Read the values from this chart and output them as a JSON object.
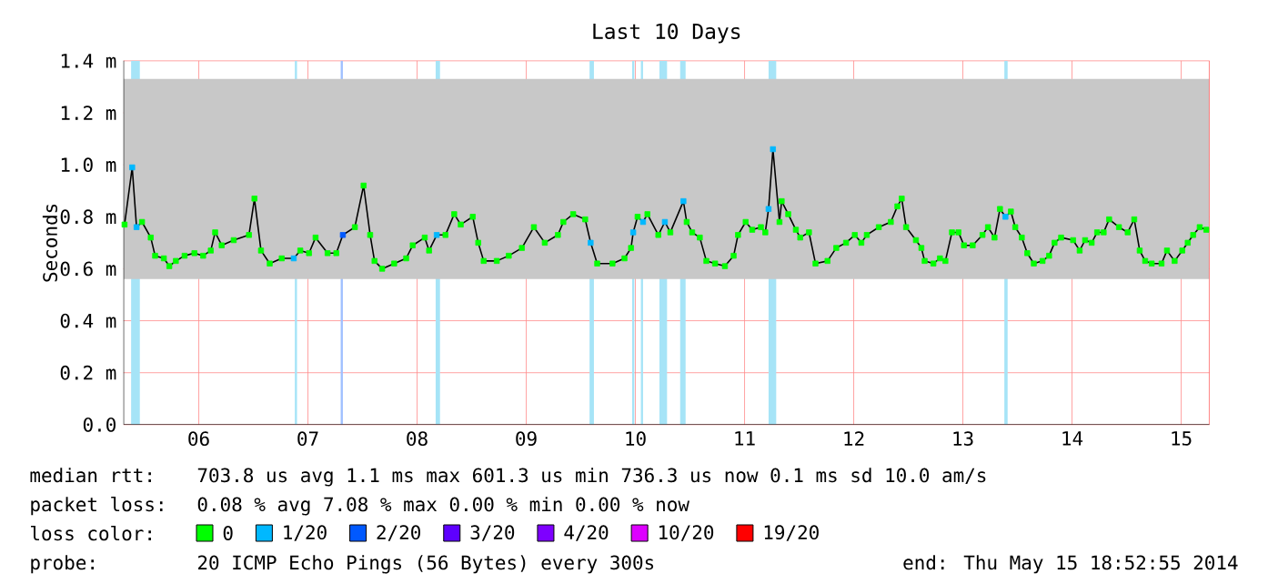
{
  "chart_data": {
    "type": "line",
    "title": "Last 10 Days",
    "ylabel": "Seconds",
    "xlim": [
      5.81,
      15.76
    ],
    "ylim": [
      0,
      1.4
    ],
    "xticks": [
      {
        "value": 6.5,
        "label": "06"
      },
      {
        "value": 7.5,
        "label": "07"
      },
      {
        "value": 8.5,
        "label": "08"
      },
      {
        "value": 9.5,
        "label": "09"
      },
      {
        "value": 10.5,
        "label": "10"
      },
      {
        "value": 11.5,
        "label": "11"
      },
      {
        "value": 12.5,
        "label": "12"
      },
      {
        "value": 13.5,
        "label": "13"
      },
      {
        "value": 14.5,
        "label": "14"
      },
      {
        "value": 15.5,
        "label": "15"
      }
    ],
    "yticks": [
      {
        "value": 0,
        "label": "0.0"
      },
      {
        "value": 0.2,
        "label": "0.2 m"
      },
      {
        "value": 0.4,
        "label": "0.4 m"
      },
      {
        "value": 0.6,
        "label": "0.6 m"
      },
      {
        "value": 0.8,
        "label": "0.8 m"
      },
      {
        "value": 1.0,
        "label": "1.0 m"
      },
      {
        "value": 1.2,
        "label": "1.2 m"
      },
      {
        "value": 1.4,
        "label": "1.4 m"
      }
    ],
    "grid": true,
    "legend": "bottom",
    "legend_title": "loss color:",
    "marker": "square",
    "bands": [
      {
        "axis": "x",
        "from": 5.88,
        "to": 5.96,
        "color": "#a6e4f7"
      },
      {
        "axis": "x",
        "from": 7.38,
        "to": 7.4,
        "color": "#a6e4f7"
      },
      {
        "axis": "x",
        "from": 7.8,
        "to": 7.82,
        "color": "#a0c0ff"
      },
      {
        "axis": "x",
        "from": 8.67,
        "to": 8.71,
        "color": "#a6e4f7"
      },
      {
        "axis": "x",
        "from": 10.08,
        "to": 10.12,
        "color": "#a6e4f7"
      },
      {
        "axis": "x",
        "from": 10.47,
        "to": 10.49,
        "color": "#a6e4f7"
      },
      {
        "axis": "x",
        "from": 10.55,
        "to": 10.57,
        "color": "#a6e4f7"
      },
      {
        "axis": "x",
        "from": 10.72,
        "to": 10.79,
        "color": "#a6e4f7"
      },
      {
        "axis": "x",
        "from": 10.91,
        "to": 10.96,
        "color": "#a6e4f7"
      },
      {
        "axis": "x",
        "from": 11.72,
        "to": 11.79,
        "color": "#a6e4f7"
      },
      {
        "axis": "x",
        "from": 13.88,
        "to": 13.91,
        "color": "#a6e4f7"
      },
      {
        "axis": "y",
        "from": 0.56,
        "to": 1.33,
        "color": "#c8c8c8"
      }
    ],
    "series": [
      {
        "type": "line",
        "color": "#000000",
        "marker": "none",
        "x": [
          5.82,
          5.89,
          5.93,
          5.98,
          6.06,
          6.1,
          6.18,
          6.23,
          6.29,
          6.37,
          6.46,
          6.54,
          6.61,
          6.65,
          6.71,
          6.82,
          6.96,
          7.01,
          7.07,
          7.15,
          7.26,
          7.37,
          7.43,
          7.51,
          7.57,
          7.68,
          7.76,
          7.82,
          7.93,
          8.01,
          8.07,
          8.11,
          8.18,
          8.29,
          8.4,
          8.46,
          8.57,
          8.61,
          8.68,
          8.76,
          8.84,
          8.9,
          9.01,
          9.06,
          9.11,
          9.23,
          9.34,
          9.46,
          9.57,
          9.67,
          9.79,
          9.84,
          9.93,
          10.04,
          10.09,
          10.15,
          10.29,
          10.4,
          10.46,
          10.48,
          10.52,
          10.57,
          10.61,
          10.71,
          10.77,
          10.82,
          10.94,
          10.97,
          11.02,
          11.09,
          11.15,
          11.23,
          11.32,
          11.4,
          11.44,
          11.51,
          11.57,
          11.65,
          11.69,
          11.72,
          11.76,
          11.82,
          11.84,
          11.9,
          11.97,
          12.01,
          12.09,
          12.15,
          12.26,
          12.34,
          12.43,
          12.51,
          12.57,
          12.62,
          12.73,
          12.84,
          12.9,
          12.94,
          12.98,
          13.07,
          13.12,
          13.15,
          13.23,
          13.29,
          13.34,
          13.4,
          13.46,
          13.51,
          13.59,
          13.68,
          13.73,
          13.79,
          13.84,
          13.89,
          13.94,
          13.98,
          14.04,
          14.09,
          14.15,
          14.23,
          14.29,
          14.34,
          14.4,
          14.51,
          14.57,
          14.62,
          14.68,
          14.73,
          14.79,
          14.84,
          14.93,
          15.01,
          15.07,
          15.12,
          15.17,
          15.23,
          15.32,
          15.37,
          15.44,
          15.51,
          15.56,
          15.61,
          15.67,
          15.73
        ],
        "values": [
          0.77,
          0.99,
          0.76,
          0.78,
          0.72,
          0.65,
          0.64,
          0.61,
          0.63,
          0.65,
          0.66,
          0.65,
          0.67,
          0.74,
          0.69,
          0.71,
          0.73,
          0.87,
          0.67,
          0.62,
          0.64,
          0.64,
          0.67,
          0.66,
          0.72,
          0.66,
          0.66,
          0.73,
          0.76,
          0.92,
          0.73,
          0.63,
          0.6,
          0.62,
          0.64,
          0.69,
          0.72,
          0.67,
          0.73,
          0.73,
          0.81,
          0.77,
          0.8,
          0.7,
          0.63,
          0.63,
          0.65,
          0.68,
          0.76,
          0.7,
          0.73,
          0.78,
          0.81,
          0.79,
          0.7,
          0.62,
          0.62,
          0.64,
          0.68,
          0.74,
          0.8,
          0.78,
          0.81,
          0.73,
          0.78,
          0.74,
          0.86,
          0.78,
          0.74,
          0.72,
          0.63,
          0.62,
          0.61,
          0.65,
          0.73,
          0.78,
          0.75,
          0.76,
          0.74,
          0.83,
          1.06,
          0.78,
          0.86,
          0.81,
          0.75,
          0.72,
          0.74,
          0.62,
          0.63,
          0.68,
          0.7,
          0.73,
          0.7,
          0.73,
          0.76,
          0.78,
          0.84,
          0.87,
          0.76,
          0.71,
          0.68,
          0.63,
          0.62,
          0.64,
          0.63,
          0.74,
          0.74,
          0.69,
          0.69,
          0.73,
          0.76,
          0.72,
          0.83,
          0.8,
          0.82,
          0.76,
          0.72,
          0.66,
          0.62,
          0.63,
          0.65,
          0.7,
          0.72,
          0.71,
          0.67,
          0.71,
          0.7,
          0.74,
          0.74,
          0.79,
          0.76,
          0.74,
          0.79,
          0.67,
          0.63,
          0.62,
          0.62,
          0.67,
          0.63,
          0.67,
          0.7,
          0.73,
          0.76,
          0.75
        ]
      },
      {
        "type": "scatter",
        "name": "0",
        "color": "#00ff00",
        "x": [
          5.82,
          5.98,
          6.06,
          6.1,
          6.18,
          6.23,
          6.29,
          6.37,
          6.46,
          6.54,
          6.61,
          6.65,
          6.71,
          6.82,
          6.96,
          7.01,
          7.07,
          7.15,
          7.26,
          7.43,
          7.51,
          7.57,
          7.68,
          7.76,
          7.93,
          8.01,
          8.07,
          8.11,
          8.18,
          8.29,
          8.4,
          8.46,
          8.57,
          8.61,
          8.76,
          8.84,
          8.9,
          9.01,
          9.06,
          9.11,
          9.23,
          9.34,
          9.46,
          9.57,
          9.67,
          9.79,
          9.84,
          9.93,
          10.04,
          10.15,
          10.29,
          10.4,
          10.46,
          10.52,
          10.61,
          10.71,
          10.82,
          10.97,
          11.02,
          11.09,
          11.15,
          11.23,
          11.32,
          11.4,
          11.44,
          11.51,
          11.57,
          11.65,
          11.69,
          11.82,
          11.84,
          11.9,
          11.97,
          12.01,
          12.09,
          12.15,
          12.26,
          12.34,
          12.43,
          12.51,
          12.57,
          12.62,
          12.73,
          12.84,
          12.9,
          12.94,
          12.98,
          13.07,
          13.12,
          13.15,
          13.23,
          13.29,
          13.34,
          13.4,
          13.46,
          13.51,
          13.59,
          13.68,
          13.73,
          13.79,
          13.84,
          13.94,
          13.98,
          14.04,
          14.09,
          14.15,
          14.23,
          14.29,
          14.34,
          14.4,
          14.51,
          14.57,
          14.62,
          14.68,
          14.73,
          14.79,
          14.84,
          14.93,
          15.01,
          15.07,
          15.12,
          15.17,
          15.23,
          15.32,
          15.37,
          15.44,
          15.51,
          15.56,
          15.61,
          15.67,
          15.73
        ],
        "values": [
          0.77,
          0.78,
          0.72,
          0.65,
          0.64,
          0.61,
          0.63,
          0.65,
          0.66,
          0.65,
          0.67,
          0.74,
          0.69,
          0.71,
          0.73,
          0.87,
          0.67,
          0.62,
          0.64,
          0.67,
          0.66,
          0.72,
          0.66,
          0.66,
          0.76,
          0.92,
          0.73,
          0.63,
          0.6,
          0.62,
          0.64,
          0.69,
          0.72,
          0.67,
          0.73,
          0.81,
          0.77,
          0.8,
          0.7,
          0.63,
          0.63,
          0.65,
          0.68,
          0.76,
          0.7,
          0.73,
          0.78,
          0.81,
          0.79,
          0.62,
          0.62,
          0.64,
          0.68,
          0.8,
          0.81,
          0.73,
          0.74,
          0.78,
          0.74,
          0.72,
          0.63,
          0.62,
          0.61,
          0.65,
          0.73,
          0.78,
          0.75,
          0.76,
          0.74,
          0.78,
          0.86,
          0.81,
          0.75,
          0.72,
          0.74,
          0.62,
          0.63,
          0.68,
          0.7,
          0.73,
          0.7,
          0.73,
          0.76,
          0.78,
          0.84,
          0.87,
          0.76,
          0.71,
          0.68,
          0.63,
          0.62,
          0.64,
          0.63,
          0.74,
          0.74,
          0.69,
          0.69,
          0.73,
          0.76,
          0.72,
          0.83,
          0.82,
          0.76,
          0.72,
          0.66,
          0.62,
          0.63,
          0.65,
          0.7,
          0.72,
          0.71,
          0.67,
          0.71,
          0.7,
          0.74,
          0.74,
          0.79,
          0.76,
          0.74,
          0.79,
          0.67,
          0.63,
          0.62,
          0.62,
          0.67,
          0.63,
          0.67,
          0.7,
          0.73,
          0.76,
          0.75
        ]
      },
      {
        "type": "scatter",
        "name": "1/20",
        "color": "#00b8ff",
        "x": [
          5.89,
          5.93,
          7.37,
          8.68,
          10.09,
          10.48,
          10.57,
          10.77,
          10.94,
          11.72,
          11.76,
          13.89
        ],
        "values": [
          0.99,
          0.76,
          0.64,
          0.73,
          0.7,
          0.74,
          0.78,
          0.78,
          0.86,
          0.83,
          1.06,
          0.8
        ]
      },
      {
        "type": "scatter",
        "name": "2/20",
        "color": "#0059ff",
        "x": [
          7.82
        ],
        "values": [
          0.73
        ]
      },
      {
        "type": "scatter",
        "name": "3/20",
        "color": "#5e00ff"
      },
      {
        "type": "scatter",
        "name": "4/20",
        "color": "#7e00ff"
      },
      {
        "type": "scatter",
        "name": "10/20",
        "color": "#dd00ff"
      },
      {
        "type": "scatter",
        "name": "19/20",
        "color": "#ff0000"
      }
    ],
    "annotations": [
      "median rtt:",
      "703.8 us avg  1.1 ms max  601.3 us min  736.3 us now  0.1 ms sd  10.0   am/s",
      "packet loss:",
      "0.08 % avg  7.08 % max  0.00 % min  0.00 % now",
      "probe:",
      "20 ICMP Echo Pings (56 Bytes) every 300s",
      "end: Thu May 15 18:52:55 2014"
    ]
  }
}
